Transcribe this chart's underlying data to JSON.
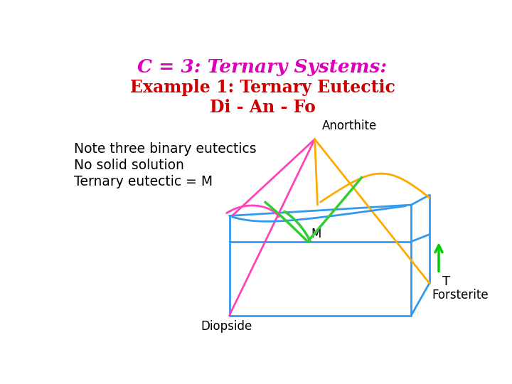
{
  "title1": "C = 3: Ternary Systems:",
  "title2": "Example 1: Ternary Eutectic",
  "title3": "Di - An - Fo",
  "title1_color": "#dd00bb",
  "title2_color": "#cc0000",
  "title3_color": "#cc0000",
  "note_lines": [
    "Note three binary eutectics",
    "No solid solution",
    "Ternary eutectic = M"
  ],
  "note_color": "#000000",
  "label_anorthite": "Anorthite",
  "label_diopside": "Diopside",
  "label_forsterite": "Forsterite",
  "label_M": "M",
  "label_T": "T",
  "color_blue": "#3399ee",
  "color_pink": "#ff44bb",
  "color_orange": "#ffaa00",
  "color_green": "#33cc33",
  "color_arrow": "#00cc00",
  "bg_color": "#ffffff"
}
